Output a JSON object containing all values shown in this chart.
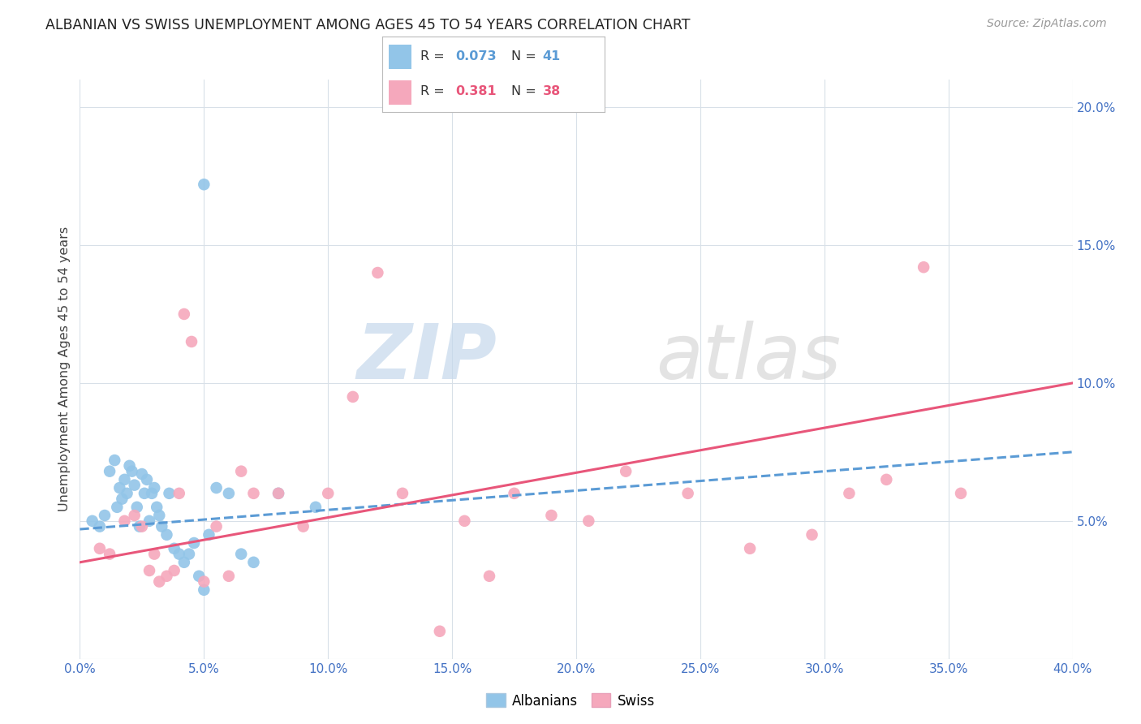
{
  "title": "ALBANIAN VS SWISS UNEMPLOYMENT AMONG AGES 45 TO 54 YEARS CORRELATION CHART",
  "source": "Source: ZipAtlas.com",
  "ylabel": "Unemployment Among Ages 45 to 54 years",
  "xlim": [
    0.0,
    0.4
  ],
  "ylim": [
    0.0,
    0.21
  ],
  "xticks": [
    0.0,
    0.05,
    0.1,
    0.15,
    0.2,
    0.25,
    0.3,
    0.35,
    0.4
  ],
  "yticks": [
    0.0,
    0.05,
    0.1,
    0.15,
    0.2
  ],
  "ytick_labels": [
    "",
    "5.0%",
    "10.0%",
    "15.0%",
    "20.0%"
  ],
  "xtick_labels": [
    "0.0%",
    "5.0%",
    "10.0%",
    "15.0%",
    "20.0%",
    "25.0%",
    "30.0%",
    "35.0%",
    "40.0%"
  ],
  "albanians_R": 0.073,
  "albanians_N": 41,
  "swiss_R": 0.381,
  "swiss_N": 38,
  "albanian_color": "#92c5e8",
  "swiss_color": "#f5a8bc",
  "albanian_line_color": "#5b9bd5",
  "swiss_line_color": "#e8567a",
  "watermark_zip": "ZIP",
  "watermark_atlas": "atlas",
  "watermark_color_zip": "#c5d8ec",
  "watermark_color_atlas": "#c8c8c8",
  "albanians_x": [
    0.005,
    0.008,
    0.01,
    0.012,
    0.014,
    0.015,
    0.016,
    0.017,
    0.018,
    0.019,
    0.02,
    0.021,
    0.022,
    0.023,
    0.024,
    0.025,
    0.026,
    0.027,
    0.028,
    0.029,
    0.03,
    0.031,
    0.032,
    0.033,
    0.035,
    0.036,
    0.038,
    0.04,
    0.042,
    0.044,
    0.046,
    0.048,
    0.05,
    0.052,
    0.055,
    0.06,
    0.065,
    0.07,
    0.08,
    0.095,
    0.05
  ],
  "albanians_y": [
    0.05,
    0.048,
    0.052,
    0.068,
    0.072,
    0.055,
    0.062,
    0.058,
    0.065,
    0.06,
    0.07,
    0.068,
    0.063,
    0.055,
    0.048,
    0.067,
    0.06,
    0.065,
    0.05,
    0.06,
    0.062,
    0.055,
    0.052,
    0.048,
    0.045,
    0.06,
    0.04,
    0.038,
    0.035,
    0.038,
    0.042,
    0.03,
    0.025,
    0.045,
    0.062,
    0.06,
    0.038,
    0.035,
    0.06,
    0.055,
    0.172
  ],
  "swiss_x": [
    0.008,
    0.012,
    0.018,
    0.022,
    0.025,
    0.028,
    0.03,
    0.032,
    0.035,
    0.038,
    0.04,
    0.042,
    0.045,
    0.05,
    0.055,
    0.06,
    0.065,
    0.07,
    0.08,
    0.09,
    0.1,
    0.11,
    0.12,
    0.13,
    0.145,
    0.155,
    0.165,
    0.175,
    0.19,
    0.205,
    0.22,
    0.245,
    0.27,
    0.295,
    0.31,
    0.325,
    0.34,
    0.355
  ],
  "swiss_y": [
    0.04,
    0.038,
    0.05,
    0.052,
    0.048,
    0.032,
    0.038,
    0.028,
    0.03,
    0.032,
    0.06,
    0.125,
    0.115,
    0.028,
    0.048,
    0.03,
    0.068,
    0.06,
    0.06,
    0.048,
    0.06,
    0.095,
    0.14,
    0.06,
    0.01,
    0.05,
    0.03,
    0.06,
    0.052,
    0.05,
    0.068,
    0.06,
    0.04,
    0.045,
    0.06,
    0.065,
    0.142,
    0.06
  ],
  "alb_line_x0": 0.0,
  "alb_line_x1": 0.4,
  "alb_line_y0": 0.047,
  "alb_line_y1": 0.075,
  "sw_line_x0": 0.0,
  "sw_line_x1": 0.4,
  "sw_line_y0": 0.035,
  "sw_line_y1": 0.1
}
